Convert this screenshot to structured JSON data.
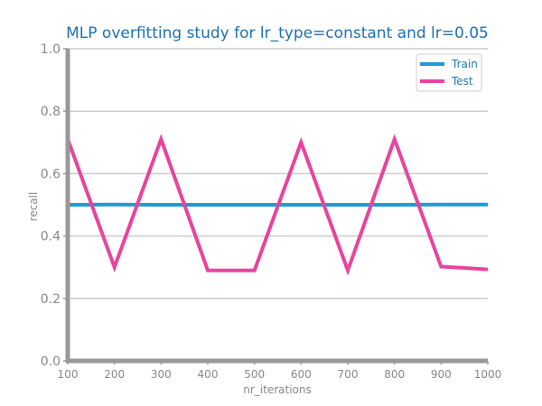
{
  "chart_data": {
    "type": "line",
    "title": "MLP overfitting study for lr_type=constant and lr=0.05",
    "xlabel": "nr_iterations",
    "ylabel": "recall",
    "x": [
      100,
      200,
      300,
      400,
      500,
      600,
      700,
      800,
      900,
      1000
    ],
    "xlim": [
      100,
      1000
    ],
    "ylim": [
      0.0,
      1.0
    ],
    "xticks": [
      "100",
      "200",
      "300",
      "400",
      "500",
      "600",
      "700",
      "800",
      "900",
      "1000"
    ],
    "yticks": [
      "0.0",
      "0.2",
      "0.4",
      "0.6",
      "0.8",
      "1.0"
    ],
    "grid": true,
    "legend_position": "top-right",
    "series": [
      {
        "name": "Train",
        "color": "#1f9ad6",
        "values": [
          0.5,
          0.501,
          0.5,
          0.5,
          0.5,
          0.5,
          0.5,
          0.5,
          0.501,
          0.501
        ]
      },
      {
        "name": "Test",
        "color": "#e8449d",
        "values": [
          0.71,
          0.3,
          0.71,
          0.29,
          0.29,
          0.7,
          0.29,
          0.71,
          0.302,
          0.293
        ]
      }
    ]
  },
  "colors": {
    "title": "#1f6fb4",
    "axis": "#999999",
    "grid": "#cccccc",
    "legend_text": "#1f77b4"
  }
}
